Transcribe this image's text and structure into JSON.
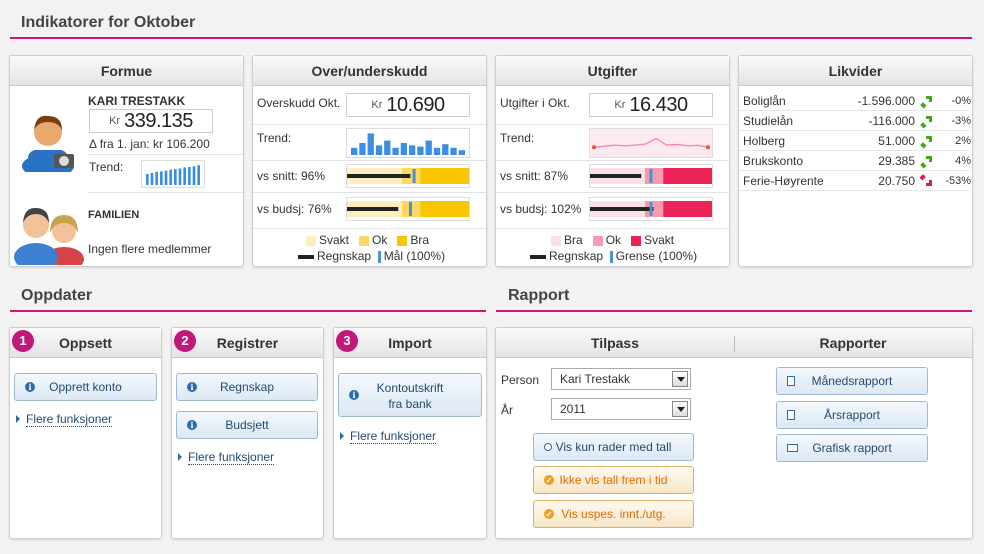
{
  "sections": {
    "indicators_title": "Indikatorer for Oktober",
    "update_title": "Oppdater",
    "report_title": "Rapport"
  },
  "formue": {
    "title": "Formue",
    "person_name": "KARI TRESTAKK",
    "currency": "Kr",
    "value": "339.135",
    "delta": "Δ fra 1. jan: kr 106.200",
    "trend_label": "Trend:",
    "trend_values": [
      0.5,
      0.55,
      0.6,
      0.62,
      0.65,
      0.7,
      0.72,
      0.75,
      0.8,
      0.82,
      0.85,
      0.9
    ],
    "family_label": "FAMILIEN",
    "family_text": "Ingen flere medlemmer"
  },
  "over": {
    "title": "Over/underskudd",
    "label": "Overskudd Okt.",
    "currency": "Kr",
    "value": "10.690",
    "trend_label": "Trend:",
    "trend_values": [
      0.3,
      0.5,
      0.9,
      0.4,
      0.6,
      0.3,
      0.5,
      0.4,
      0.35,
      0.6,
      0.3,
      0.45,
      0.3,
      0.2
    ],
    "snitt_label": "vs snitt: 96%",
    "budsj_label": "vs budsj: 76%",
    "snitt_actual": 0.52,
    "snitt_target": 0.55,
    "budsj_actual": 0.42,
    "budsj_target": 0.52,
    "legend": {
      "svakt": "Svakt",
      "ok": "Ok",
      "bra": "Bra",
      "regnskap": "Regnskap",
      "maal": "Mål (100%)"
    },
    "colors": {
      "svakt": "#fdeebb",
      "ok": "#fdd862",
      "bra": "#f8c600",
      "actual": "#222222",
      "target": "#4a90d9"
    }
  },
  "utg": {
    "title": "Utgifter",
    "label": "Utgifter i Okt.",
    "currency": "Kr",
    "value": "16.430",
    "trend_label": "Trend:",
    "trend_values": [
      0.35,
      0.4,
      0.45,
      0.42,
      0.45,
      0.5,
      0.75,
      0.45,
      0.48,
      0.42,
      0.44,
      0.35
    ],
    "snitt_label": "vs snitt: 87%",
    "budsj_label": "vs budsj: 102%",
    "snitt_actual": 0.42,
    "snitt_target": 0.5,
    "budsj_actual": 0.52,
    "budsj_target": 0.5,
    "legend": {
      "bra": "Bra",
      "ok": "Ok",
      "svakt": "Svakt",
      "regnskap": "Regnskap",
      "grense": "Grense (100%)"
    },
    "colors": {
      "bra": "#fbe0e6",
      "ok": "#f59ab0",
      "svakt": "#ec2356",
      "actual": "#222222",
      "target": "#4a90d9"
    }
  },
  "likvider": {
    "title": "Likvider",
    "rows": [
      {
        "name": "Boliglån",
        "value": "-1.596.000",
        "pct": "-0%",
        "dir": "up"
      },
      {
        "name": "Studielån",
        "value": "-116.000",
        "pct": "-3%",
        "dir": "up"
      },
      {
        "name": "Holberg",
        "value": "51.000",
        "pct": "2%",
        "dir": "up"
      },
      {
        "name": "Brukskonto",
        "value": "29.385",
        "pct": "4%",
        "dir": "up"
      },
      {
        "name": "Ferie-Høyrente",
        "value": "20.750",
        "pct": "-53%",
        "dir": "down"
      }
    ],
    "colors": {
      "up": "#43a816",
      "down": "#dd1c4c"
    }
  },
  "oppsett": {
    "badge": "1",
    "title": "Oppsett",
    "button": "Opprett konto",
    "more": "Flere funksjoner"
  },
  "registrer": {
    "badge": "2",
    "title": "Registrer",
    "button1": "Regnskap",
    "button2": "Budsjett",
    "more": "Flere funksjoner"
  },
  "import": {
    "badge": "3",
    "title": "Import",
    "button_line1": "Kontoutskrift",
    "button_line2": "fra bank",
    "more": "Flere funksjoner"
  },
  "tilpass": {
    "title": "Tilpass",
    "person_label": "Person",
    "person_value": "Kari Trestakk",
    "year_label": "År",
    "year_value": "2011",
    "btn_rows": "Vis kun rader med tall",
    "btn_future": "Ikke vis tall frem i tid",
    "btn_uspes": "Vis uspes. innt./utg."
  },
  "rapporter": {
    "title": "Rapporter",
    "monthly": "Månedsrapport",
    "yearly": "Årsrapport",
    "graphic": "Grafisk rapport"
  }
}
